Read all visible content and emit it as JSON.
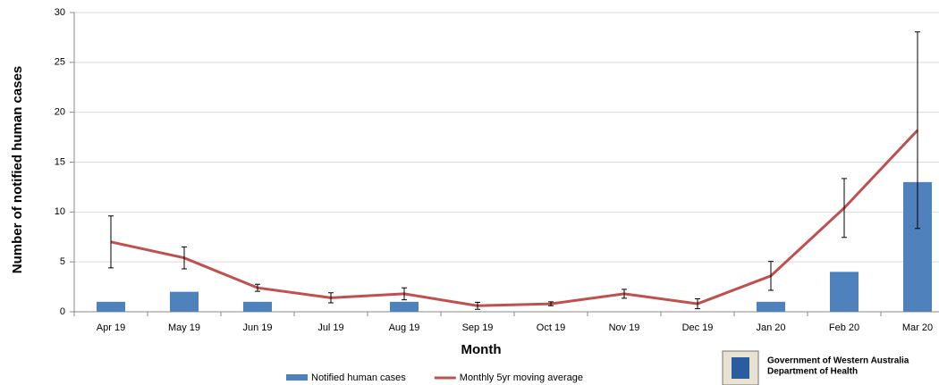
{
  "chart_data": {
    "type": "bar-line",
    "x_label": "Month",
    "y_label": "Number of notified human cases",
    "categories": [
      "Apr 19",
      "May 19",
      "Jun 19",
      "Jul 19",
      "Aug 19",
      "Sep 19",
      "Oct 19",
      "Nov 19",
      "Dec 19",
      "Jan 20",
      "Feb 20",
      "Mar 20"
    ],
    "series": [
      {
        "name": "Notified human cases",
        "type": "bar",
        "color": "#4f81bd",
        "values": [
          1,
          2,
          1,
          0,
          1,
          0,
          0,
          0,
          0,
          1,
          4,
          13
        ]
      },
      {
        "name": "Monthly 5yr moving average",
        "type": "line",
        "color": "#c0504d",
        "values": [
          7.0,
          5.4,
          2.4,
          1.4,
          1.8,
          0.6,
          0.8,
          1.8,
          0.8,
          3.6,
          10.4,
          18.2
        ],
        "errors": [
          2.6,
          1.1,
          0.35,
          0.5,
          0.6,
          0.35,
          0.2,
          0.45,
          0.5,
          1.45,
          2.95,
          9.85
        ]
      }
    ],
    "ylim": [
      0,
      30
    ],
    "yticks": [
      0,
      5,
      10,
      15,
      20,
      25,
      30
    ],
    "grid": true
  },
  "footer": {
    "organization": "Government of Western Australia",
    "department": "Department of Health"
  }
}
